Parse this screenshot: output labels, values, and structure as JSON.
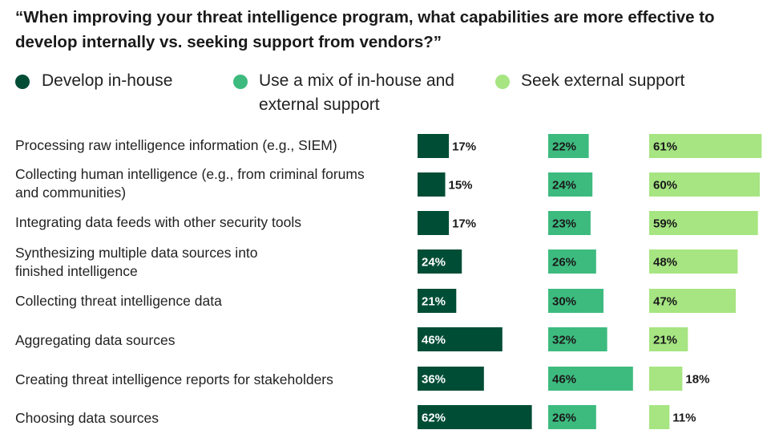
{
  "chart_data": {
    "type": "bar",
    "title": "“When improving your threat intelligence program, what capabilities are more effective to develop internally vs. seeking support from vendors?”",
    "categories": [
      "Processing raw intelligence information (e.g., SIEM)",
      "Collecting human intelligence (e.g., from criminal forums and communities)",
      "Integrating data feeds with other security tools",
      "Synthesizing multiple data sources into finished intelligence",
      "Collecting threat intelligence data",
      "Aggregating data sources",
      "Creating threat intelligence reports for stakeholders",
      "Choosing data sources"
    ],
    "series": [
      {
        "name": "Develop in-house",
        "color": "#004d35",
        "values": [
          17,
          15,
          17,
          24,
          21,
          46,
          36,
          62
        ]
      },
      {
        "name": "Use a mix of in-house and external support",
        "color": "#3dbb7f",
        "values": [
          22,
          24,
          23,
          26,
          30,
          32,
          46,
          26
        ]
      },
      {
        "name": "Seek external support",
        "color": "#a6e582",
        "values": [
          61,
          60,
          59,
          48,
          47,
          21,
          18,
          11
        ]
      }
    ],
    "value_suffix": "%",
    "legend": "top",
    "grid": false
  }
}
